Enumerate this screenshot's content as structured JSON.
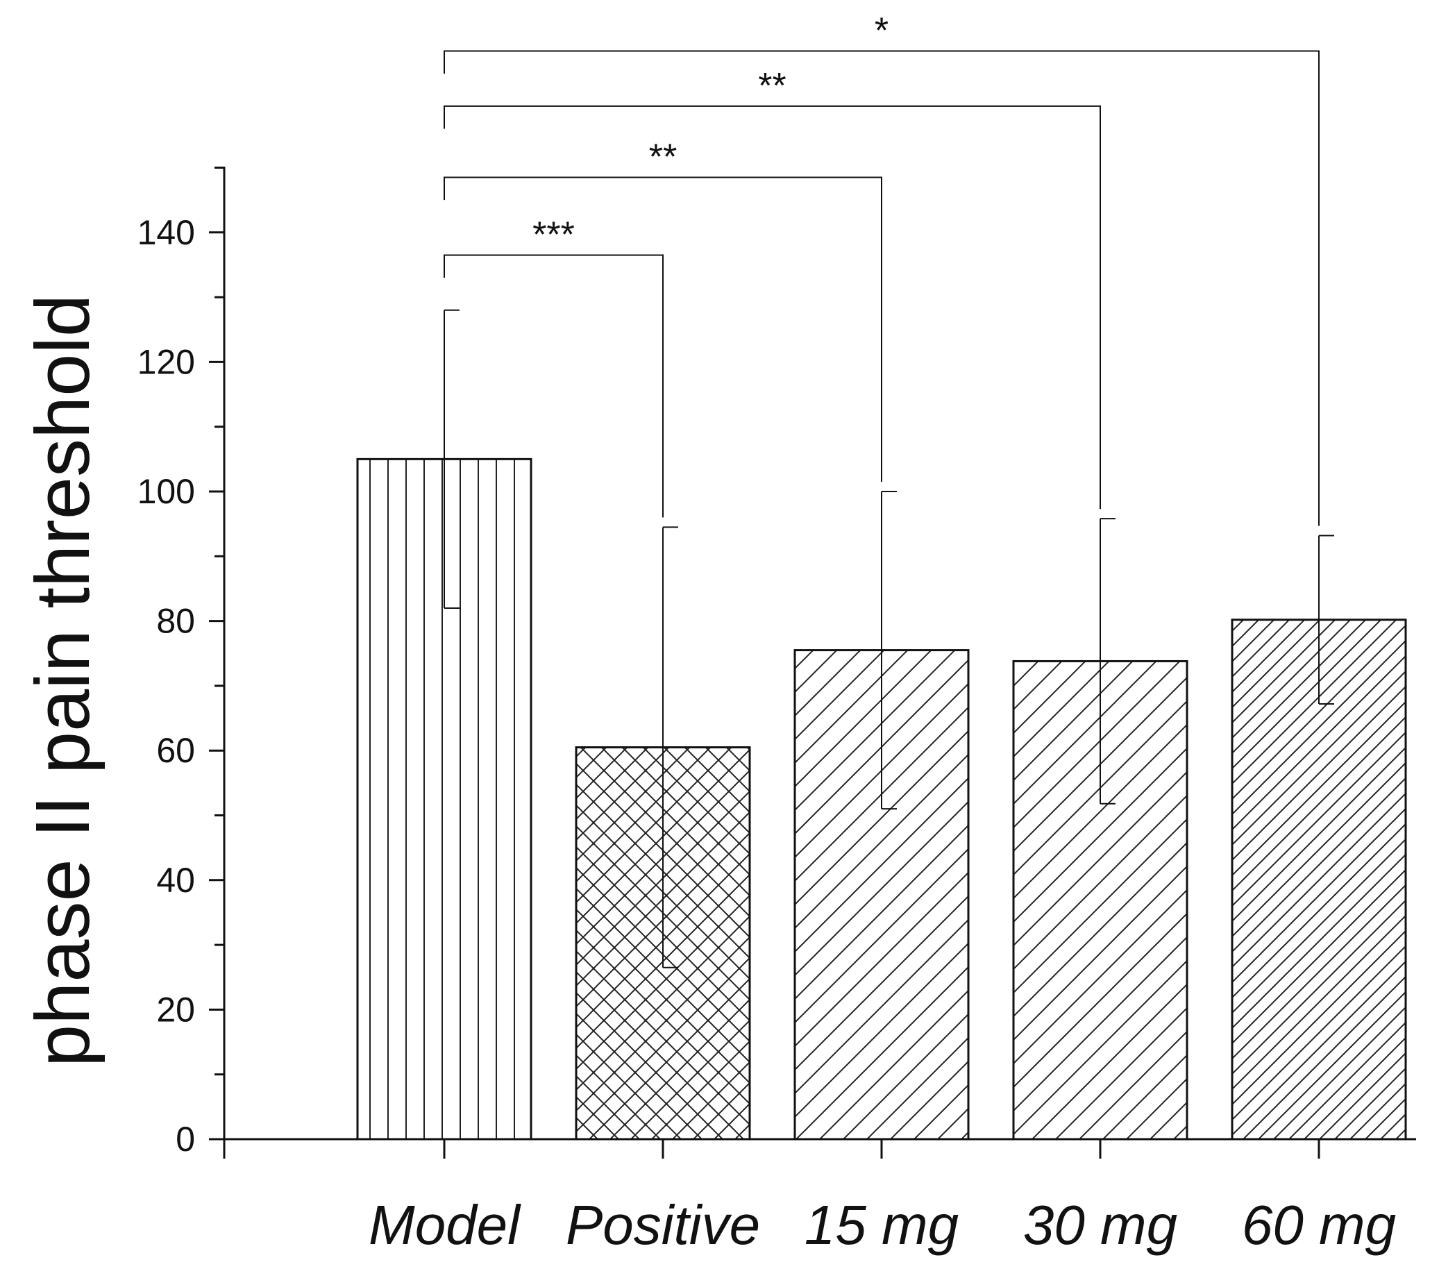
{
  "chart_data": {
    "type": "bar",
    "title": "",
    "xlabel": "",
    "ylabel": "phase II  pain threshold",
    "ylim": [
      0,
      150
    ],
    "yticks": [
      0,
      20,
      40,
      60,
      80,
      100,
      120,
      140
    ],
    "categories": [
      "Model",
      "Positive",
      "15 mg",
      "30 mg",
      "60 mg"
    ],
    "values": [
      105,
      60.5,
      75.5,
      73.8,
      80.2
    ],
    "error": [
      23,
      34,
      24.5,
      22,
      13
    ],
    "patterns": [
      "vertical",
      "crosshatch",
      "diagonal",
      "diagonal",
      "diagonal-dense"
    ],
    "significance": [
      {
        "from": "Model",
        "to": "Positive",
        "label": "***",
        "y": 136.5
      },
      {
        "from": "Model",
        "to": "15 mg",
        "label": "**",
        "y": 148.5
      },
      {
        "from": "Model",
        "to": "30 mg",
        "label": "**",
        "y": 159.5
      },
      {
        "from": "Model",
        "to": "60 mg",
        "label": "*",
        "y": 168
      }
    ],
    "colors": {
      "bar_fill": "#ffffff",
      "stroke": "#111111",
      "hatch": "#222222"
    }
  }
}
